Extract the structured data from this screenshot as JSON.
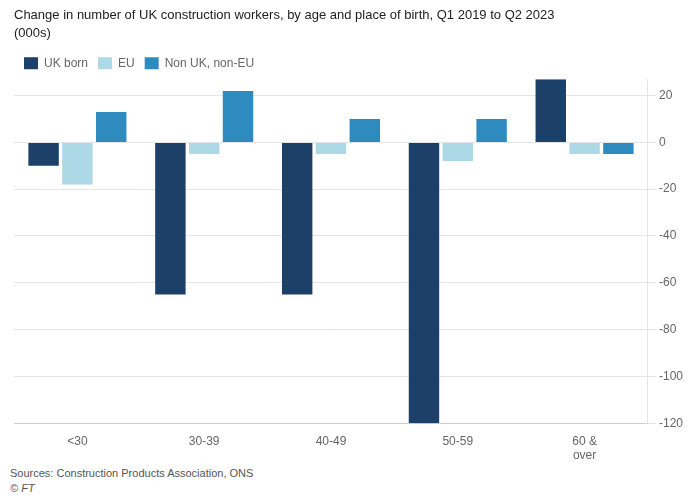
{
  "chart_data": {
    "type": "bar",
    "title": "Change in number of UK construction workers, by age and place of birth, Q1 2019 to Q2 2023",
    "subtitle": "(000s)",
    "annotations": [
      "Sources: Construction Products Association, ONS",
      "© FT"
    ],
    "categories": [
      "<30",
      "30-39",
      "40-49",
      "50-59",
      "60 &\nover"
    ],
    "series": [
      {
        "name": "UK born",
        "color": "#1d4068",
        "values": [
          -10,
          -65,
          -65,
          -120,
          27
        ]
      },
      {
        "name": "EU",
        "color": "#add8e6",
        "values": [
          -18,
          -5,
          -5,
          -8,
          -5
        ]
      },
      {
        "name": "Non UK, non-EU",
        "color": "#2e8bc0",
        "values": [
          13,
          22,
          10,
          10,
          -5
        ]
      }
    ],
    "ylim": [
      -120,
      27
    ],
    "yticks": [
      20,
      0,
      -20,
      -40,
      -60,
      -80,
      -100,
      -120
    ],
    "grid": true,
    "legend": "upper left"
  }
}
